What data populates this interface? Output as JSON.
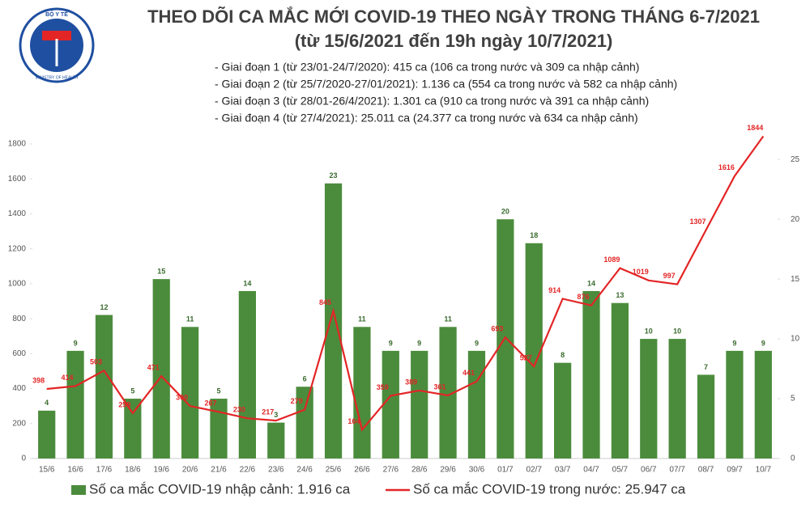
{
  "logo": {
    "top": "BỘ Y TẾ",
    "bottom": "MINISTRY OF HEALTH"
  },
  "chart_data": {
    "type": "combo",
    "title": "THEO DÕI CA MẮC MỚI COVID-19 THEO NGÀY TRONG THÁNG 6-7/2021",
    "subtitle": "(từ 15/6/2021 đến 19h ngày 10/7/2021)",
    "notes": [
      "- Giai đoạn 1 (từ 23/01-24/7/2020): 415 ca (106 ca trong nước và 309 ca nhập cảnh)",
      "- Giai đoạn 2 (từ 25/7/2020-27/01/2021): 1.136 ca (554 ca trong nước và 582 ca nhập cảnh)",
      "- Giai đoạn 3 (từ 28/01-26/4/2021): 1.301 ca (910 ca trong nước và 391 ca nhập cảnh)",
      "- Giai đoạn 4 (từ 27/4/2021): 25.011 ca (24.377 ca trong nước và 634 ca nhập cảnh)"
    ],
    "categories": [
      "15/6",
      "16/6",
      "17/6",
      "18/6",
      "19/6",
      "20/6",
      "21/6",
      "22/6",
      "23/6",
      "24/6",
      "25/6",
      "26/6",
      "27/6",
      "28/6",
      "29/6",
      "30/6",
      "01/7",
      "02/7",
      "03/7",
      "04/7",
      "05/7",
      "06/7",
      "07/7",
      "08/7",
      "09/7",
      "10/7"
    ],
    "series": [
      {
        "name": "Số ca mắc COVID-19 nhập cảnh: 1.916 ca",
        "type": "bar",
        "axis": "y2",
        "color": "#4b8c3c",
        "values": [
          4,
          9,
          12,
          5,
          15,
          11,
          5,
          14,
          3,
          6,
          23,
          11,
          9,
          9,
          11,
          9,
          20,
          18,
          8,
          14,
          13,
          10,
          10,
          7,
          9,
          9
        ]
      },
      {
        "name": "Số ca mắc COVID-19 trong nước: 25.947 ca",
        "type": "line",
        "color": "#e32526",
        "values": [
          398,
          414,
          503,
          259,
          471,
          300,
          267,
          230,
          217,
          279,
          845,
          164,
          359,
          389,
          361,
          441,
          693,
          527,
          914,
          876,
          1089,
          1019,
          997,
          1307,
          1616,
          1844
        ]
      }
    ],
    "ylim": [
      0,
      1800
    ],
    "yticks": [
      0,
      200,
      400,
      600,
      800,
      1000,
      1200,
      1400,
      1600,
      1800
    ],
    "y2lim": [
      0,
      26.3
    ],
    "y2ticks": [
      0,
      5,
      10,
      15,
      20,
      25
    ],
    "grid": false
  }
}
